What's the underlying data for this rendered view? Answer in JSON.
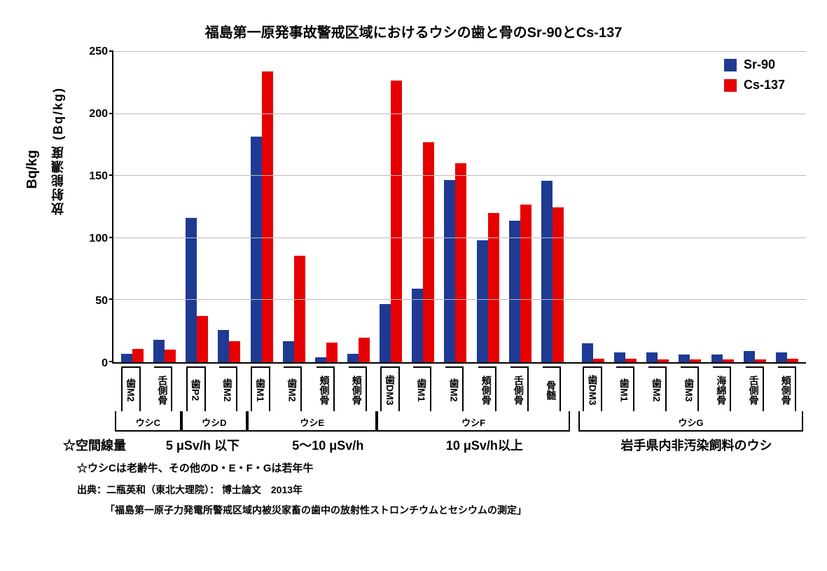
{
  "title": "福島第一原発事故警戒区域におけるウシの歯と骨のSr-90とCs-137",
  "outer_yunit": "Bq/kg",
  "ylabel": "放射能濃度 (Bq/kg)",
  "chart": {
    "type": "bar",
    "ylim": [
      0,
      250
    ],
    "ytick_step": 50,
    "yticks": [
      0,
      50,
      100,
      150,
      200,
      250
    ],
    "background_color": "#ffffff",
    "grid_color": "#bbbbbb",
    "axis_color": "#000000",
    "series": [
      {
        "key": "sr90",
        "label": "Sr-90",
        "color": "#1e3a93"
      },
      {
        "key": "cs137",
        "label": "Cs-137",
        "color": "#e60000"
      }
    ],
    "groups": [
      {
        "name": "ウシC",
        "dose": "5 μSv/h 以下",
        "box": true,
        "items": [
          {
            "label": "歯M2",
            "sr90": 7,
            "cs137": 11
          },
          {
            "label": "舌側骨",
            "sr90": 18,
            "cs137": 10
          }
        ]
      },
      {
        "name": "ウシD",
        "dose": "",
        "box": true,
        "items": [
          {
            "label": "歯P2",
            "sr90": 116,
            "cs137": 37
          },
          {
            "label": "歯M2",
            "sr90": 26,
            "cs137": 17
          }
        ]
      },
      {
        "name": "ウシE",
        "dose": "5〜10 μSv/h",
        "box": true,
        "items": [
          {
            "label": "歯M1",
            "sr90": 182,
            "cs137": 234
          },
          {
            "label": "歯M2",
            "sr90": 17,
            "cs137": 86
          },
          {
            "label": "頬側骨",
            "sr90": 4,
            "cs137": 16
          },
          {
            "label": "頬側骨",
            "sr90": 7,
            "cs137": 20
          }
        ]
      },
      {
        "name": "ウシF",
        "dose": "10 μSv/h以上",
        "box": true,
        "items": [
          {
            "label": "歯DM3",
            "sr90": 47,
            "cs137": 227
          },
          {
            "label": "歯M1",
            "sr90": 59,
            "cs137": 177
          },
          {
            "label": "歯M2",
            "sr90": 147,
            "cs137": 160
          },
          {
            "label": "頬側骨",
            "sr90": 98,
            "cs137": 120
          },
          {
            "label": "舌側骨",
            "sr90": 114,
            "cs137": 127
          },
          {
            "label": "骨髄",
            "sr90": 146,
            "cs137": 125
          }
        ]
      },
      {
        "name": "ウシG",
        "dose": "岩手県内非汚染飼料のウシ",
        "box": true,
        "gap_before": true,
        "items": [
          {
            "label": "歯DM3",
            "sr90": 15,
            "cs137": 3
          },
          {
            "label": "歯M1",
            "sr90": 8,
            "cs137": 3
          },
          {
            "label": "歯M2",
            "sr90": 8,
            "cs137": 2
          },
          {
            "label": "歯M3",
            "sr90": 6,
            "cs137": 2
          },
          {
            "label": "海綿骨",
            "sr90": 6,
            "cs137": 2
          },
          {
            "label": "舌側骨",
            "sr90": 9,
            "cs137": 2
          },
          {
            "label": "頬側骨",
            "sr90": 8,
            "cs137": 3
          }
        ]
      }
    ]
  },
  "dose_heading": "☆空間線量",
  "note_age": "☆ウシCは老齢牛、その他のD・E・F・Gは若年牛",
  "source_line": "出典：二瓶英和（東北大理院）： 博士論文　2013年",
  "source_title": "「福島第一原子力発電所警戒区域内被災家畜の歯中の放射性ストロンチウムとセシウムの測定」",
  "legend_fontsize": 18,
  "title_fontsize": 20
}
